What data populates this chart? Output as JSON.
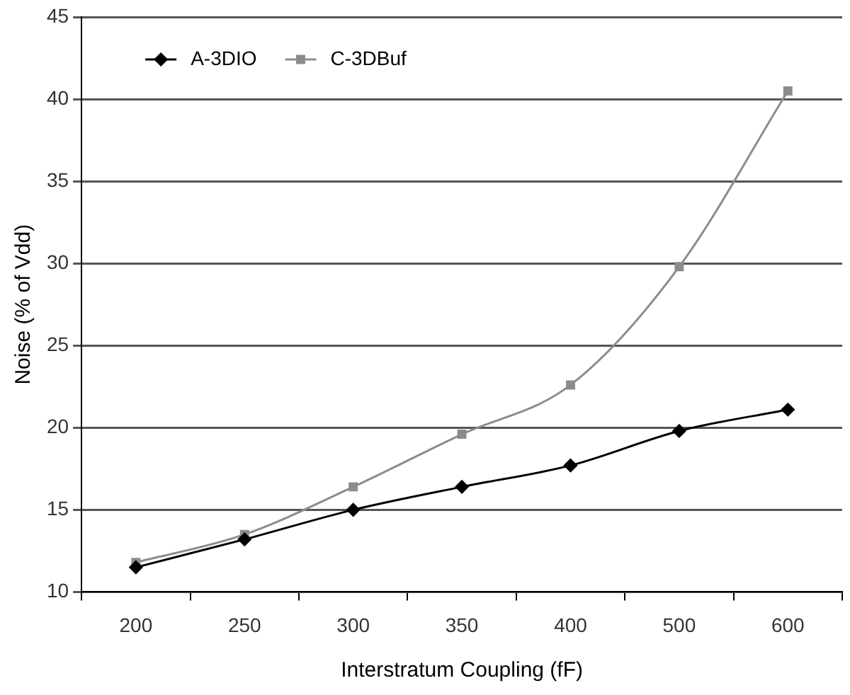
{
  "chart_data": {
    "type": "line",
    "xlabel": "Interstratum Coupling (fF)",
    "ylabel": "Noise (% of Vdd)",
    "categories": [
      "200",
      "250",
      "300",
      "350",
      "400",
      "500",
      "600"
    ],
    "series": [
      {
        "name": "A-3DIO",
        "color": "#000000",
        "marker": "diamond",
        "values": [
          11.5,
          13.2,
          15.0,
          16.4,
          17.7,
          19.8,
          21.1
        ]
      },
      {
        "name": "C-3DBuf",
        "color": "#8c8c8c",
        "marker": "square",
        "values": [
          11.8,
          13.5,
          16.4,
          19.6,
          22.6,
          29.8,
          40.5
        ]
      }
    ],
    "ylim": [
      10,
      45
    ],
    "yticks": [
      10,
      15,
      20,
      25,
      30,
      35,
      40,
      45
    ],
    "grid": "y",
    "legend": "top left"
  }
}
